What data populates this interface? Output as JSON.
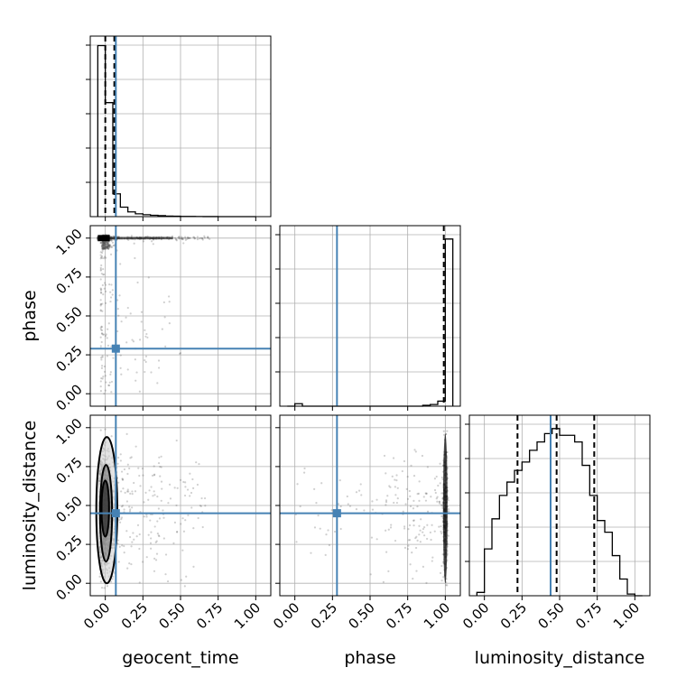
{
  "chart_data": [
    {
      "type": "histogram",
      "panel": "geocent_time-marginal",
      "xlim": [
        -0.1,
        1.1
      ],
      "bins": [
        -0.05,
        0.0,
        0.05,
        0.1,
        0.15,
        0.2,
        0.25,
        0.3,
        0.35,
        0.4,
        0.45,
        0.5,
        0.55,
        0.6,
        0.65,
        0.7,
        0.75,
        0.8,
        0.85,
        0.9,
        0.95,
        1.0
      ],
      "values": [
        0.9,
        0.6,
        0.12,
        0.05,
        0.025,
        0.015,
        0.01,
        0.007,
        0.005,
        0.003,
        0.002,
        0.001,
        0.0008,
        0.0005,
        0.0003,
        0.0002,
        0.0001,
        0.0001,
        0.0,
        0.0,
        0.0
      ],
      "ymax": 0.95,
      "quantile_lines": [
        0.0,
        0.06
      ],
      "truth": 0.07,
      "grid": true
    },
    {
      "type": "scatter",
      "panel": "phase-vs-geocent_time",
      "xlim": [
        -0.1,
        1.1
      ],
      "ylim": [
        -0.08,
        1.08
      ],
      "dense_band": {
        "y": 1.0,
        "x_from": -0.05,
        "x_to": 0.72
      },
      "truth": {
        "x": 0.07,
        "y": 0.29
      },
      "grid": true
    },
    {
      "type": "histogram",
      "panel": "phase-marginal",
      "xlim": [
        -0.1,
        1.1
      ],
      "bins": [
        -0.05,
        0.0,
        0.05,
        0.1,
        0.15,
        0.2,
        0.25,
        0.3,
        0.35,
        0.4,
        0.45,
        0.5,
        0.55,
        0.6,
        0.65,
        0.7,
        0.75,
        0.8,
        0.85,
        0.9,
        0.95,
        1.0,
        1.05
      ],
      "values": [
        0.0,
        0.015,
        0.0,
        0.0,
        0.0,
        0.0,
        0.0,
        0.0,
        0.0,
        0.0,
        0.0,
        0.0,
        0.0,
        0.0,
        0.0,
        0.0,
        0.0,
        0.0,
        0.005,
        0.01,
        0.03,
        1.0
      ],
      "ymax": 1.08,
      "quantile_lines": [
        0.99
      ],
      "truth": 0.28,
      "grid": true
    },
    {
      "type": "scatter",
      "panel": "luminosity_distance-vs-geocent_time",
      "xlim": [
        -0.1,
        1.1
      ],
      "ylim": [
        -0.08,
        1.08
      ],
      "truth": {
        "x": 0.07,
        "y": 0.45
      },
      "grid": true
    },
    {
      "type": "scatter",
      "panel": "luminosity_distance-vs-phase",
      "xlim": [
        -0.1,
        1.1
      ],
      "ylim": [
        -0.08,
        1.08
      ],
      "truth": {
        "x": 0.28,
        "y": 0.45
      },
      "grid": true
    },
    {
      "type": "histogram",
      "panel": "luminosity_distance-marginal",
      "xlim": [
        -0.1,
        1.1
      ],
      "bins": [
        -0.05,
        0.0,
        0.05,
        0.1,
        0.15,
        0.2,
        0.25,
        0.3,
        0.35,
        0.4,
        0.45,
        0.5,
        0.55,
        0.6,
        0.65,
        0.7,
        0.75,
        0.8,
        0.85,
        0.9,
        0.95,
        1.0,
        1.05
      ],
      "values": [
        0.02,
        0.28,
        0.46,
        0.6,
        0.68,
        0.75,
        0.8,
        0.87,
        0.92,
        0.97,
        1.0,
        0.96,
        0.96,
        0.92,
        0.78,
        0.6,
        0.45,
        0.38,
        0.24,
        0.1,
        0.01,
        0.0
      ],
      "ymax": 1.08,
      "quantile_lines": [
        0.22,
        0.48,
        0.73
      ],
      "truth": 0.44,
      "grid": true
    }
  ],
  "labels": {
    "xlabel_geocent": "geocent_time",
    "xlabel_phase": "phase",
    "xlabel_lumdist": "luminosity_distance",
    "ylabel_phase": "phase",
    "ylabel_lumdist": "luminosity_distance"
  },
  "ticks": [
    "0.00",
    "0.25",
    "0.50",
    "0.75",
    "1.00"
  ],
  "colors": {
    "truth": "#4682b4",
    "hist": "#000000",
    "grid": "#b0b0b0",
    "points": "#555555"
  }
}
